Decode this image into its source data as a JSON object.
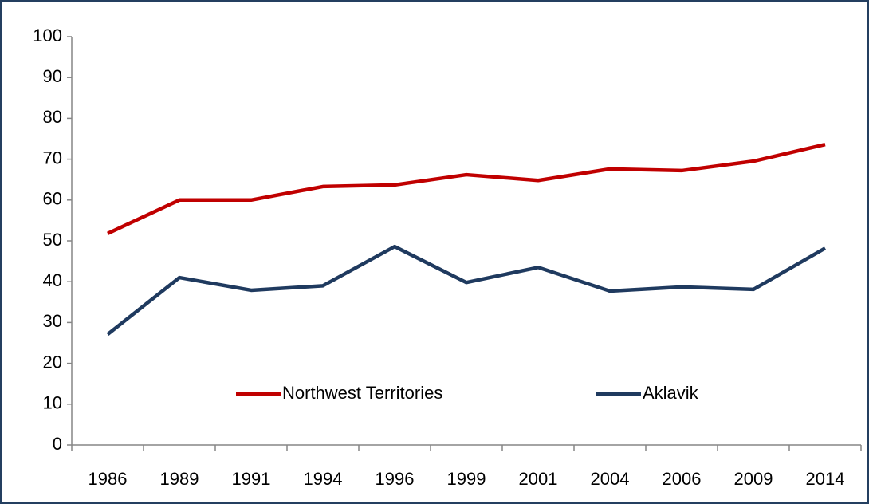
{
  "chart_data": {
    "type": "line",
    "categories": [
      "1986",
      "1989",
      "1991",
      "1994",
      "1996",
      "1999",
      "2001",
      "2004",
      "2006",
      "2009",
      "2014"
    ],
    "series": [
      {
        "name": "Northwest Territories",
        "color": "#c00000",
        "values": [
          51.8,
          60,
          60,
          63.3,
          63.7,
          66.2,
          64.8,
          67.6,
          67.2,
          69.5,
          73.6
        ]
      },
      {
        "name": "Aklavik",
        "color": "#1f3a5f",
        "values": [
          27.1,
          41,
          37.9,
          39,
          48.6,
          39.8,
          43.5,
          37.7,
          38.7,
          38.1,
          48.2
        ]
      }
    ],
    "ylim": [
      0,
      100
    ],
    "yticks": [
      0,
      10,
      20,
      30,
      40,
      50,
      60,
      70,
      80,
      90,
      100
    ],
    "grid": false,
    "legend": "lower center"
  }
}
